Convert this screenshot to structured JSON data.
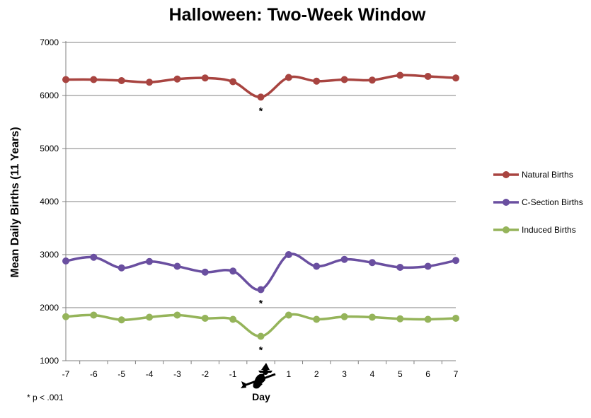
{
  "chart_data": {
    "type": "line",
    "title": "Halloween: Two-Week Window",
    "xlabel": "Day",
    "ylabel": "Mean Daily Births (11 Years)",
    "x": [
      -7,
      -6,
      -5,
      -4,
      -3,
      -2,
      -1,
      0,
      1,
      2,
      3,
      4,
      5,
      6,
      7
    ],
    "x_tick_labels": [
      "-7",
      "-6",
      "-5",
      "-4",
      "-3",
      "-2",
      "-1",
      "",
      "1",
      "2",
      "3",
      "4",
      "5",
      "6",
      "7"
    ],
    "ylim": [
      1000,
      7000
    ],
    "y_ticks": [
      1000,
      2000,
      3000,
      4000,
      5000,
      6000,
      7000
    ],
    "y_tick_labels": [
      "1000",
      "2000",
      "3000",
      "4000",
      "5000",
      "6000",
      "7000"
    ],
    "grid": true,
    "legend_position": "right",
    "series": [
      {
        "name": "Natural Births",
        "color": "#A84440",
        "values": [
          6300,
          6300,
          6280,
          6250,
          6310,
          6330,
          6260,
          5970,
          6340,
          6270,
          6300,
          6290,
          6380,
          6360,
          6330
        ]
      },
      {
        "name": "C-Section Births",
        "color": "#6A4FA0",
        "values": [
          2880,
          2950,
          2750,
          2870,
          2780,
          2670,
          2690,
          2340,
          3000,
          2780,
          2910,
          2850,
          2760,
          2780,
          2890
        ]
      },
      {
        "name": "Induced Births",
        "color": "#95B45A",
        "values": [
          1830,
          1860,
          1770,
          1820,
          1860,
          1800,
          1780,
          1460,
          1860,
          1780,
          1830,
          1820,
          1790,
          1780,
          1800
        ]
      }
    ],
    "annotations": [
      "*",
      "*",
      "*"
    ],
    "footnote": "* p < .001",
    "center_icon": "witch-on-broom-icon"
  }
}
